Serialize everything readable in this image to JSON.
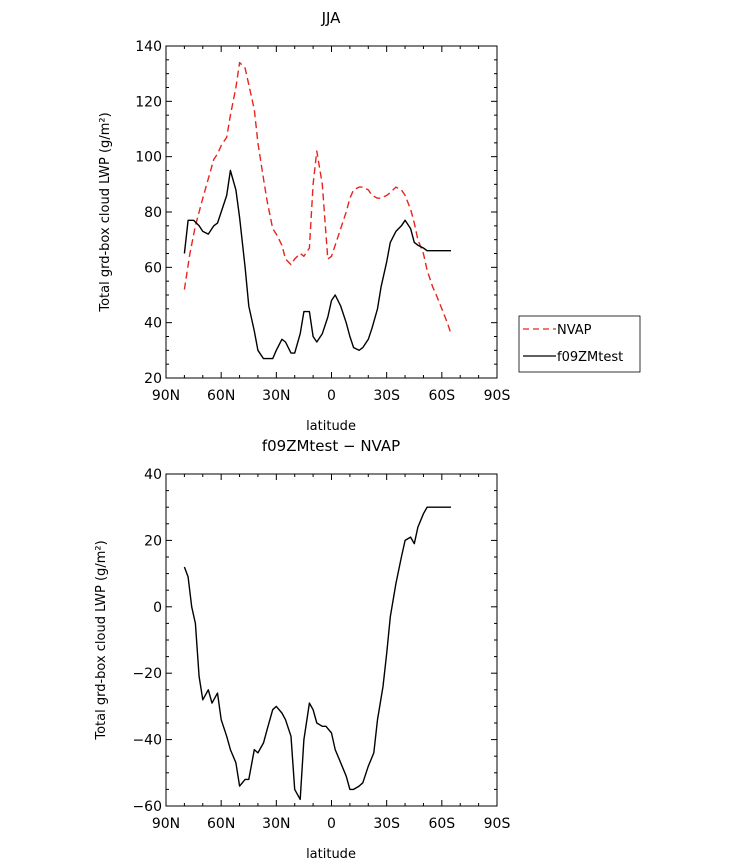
{
  "chart_data": [
    {
      "type": "line",
      "title": "JJA",
      "xlabel": "latitude",
      "ylabel": "Total grd-box cloud LWP (g/m²)",
      "xlim": [
        -90,
        90
      ],
      "ylim": [
        20,
        140
      ],
      "xticks": [
        -90,
        -60,
        -30,
        0,
        30,
        60,
        90
      ],
      "xtick_labels": [
        "90N",
        "60N",
        "30N",
        "0",
        "30S",
        "60S",
        "90S"
      ],
      "yticks": [
        20,
        40,
        60,
        80,
        100,
        120,
        140
      ],
      "ytick_labels": [
        "20",
        "40",
        "60",
        "80",
        "100",
        "120",
        "140"
      ],
      "legend_position": "right-outside",
      "series": [
        {
          "name": "NVAP",
          "color": "#e8241f",
          "dash": "dashed",
          "x": [
            -80,
            -77,
            -74,
            -72,
            -70,
            -67,
            -64,
            -62,
            -60,
            -57,
            -55,
            -52,
            -50,
            -47,
            -45,
            -42,
            -40,
            -37,
            -35,
            -32,
            -30,
            -27,
            -25,
            -22,
            -20,
            -17,
            -15,
            -12,
            -10,
            -8,
            -5,
            -2,
            0,
            2,
            5,
            8,
            10,
            12,
            15,
            17,
            20,
            22,
            25,
            27,
            30,
            32,
            35,
            38,
            40,
            43,
            45,
            47,
            50,
            52,
            55,
            57,
            60,
            63,
            65
          ],
          "y": [
            52,
            65,
            75,
            80,
            85,
            92,
            99,
            101,
            104,
            107,
            115,
            125,
            134,
            132,
            126,
            117,
            105,
            92,
            84,
            74,
            72,
            68,
            63,
            61,
            63,
            65,
            64,
            67,
            90,
            102,
            90,
            63,
            64,
            68,
            74,
            80,
            85,
            88,
            89,
            89,
            88,
            86,
            85,
            85,
            86,
            87,
            89,
            88,
            86,
            81,
            76,
            70,
            65,
            59,
            53,
            50,
            45,
            40,
            36
          ]
        },
        {
          "name": "f09ZMtest",
          "color": "#000000",
          "dash": "solid",
          "x": [
            -80,
            -78,
            -75,
            -72,
            -70,
            -67,
            -64,
            -62,
            -60,
            -57,
            -55,
            -52,
            -50,
            -47,
            -45,
            -42,
            -40,
            -37,
            -35,
            -32,
            -30,
            -27,
            -25,
            -22,
            -20,
            -17,
            -15,
            -12,
            -10,
            -8,
            -5,
            -2,
            0,
            2,
            5,
            8,
            10,
            12,
            15,
            17,
            20,
            22,
            25,
            27,
            30,
            32,
            35,
            38,
            40,
            43,
            45,
            47,
            50,
            52,
            55,
            57,
            60,
            62,
            65
          ],
          "y": [
            65,
            77,
            77,
            75,
            73,
            72,
            75,
            76,
            80,
            86,
            95,
            88,
            78,
            60,
            46,
            37,
            30,
            27,
            27,
            27,
            30,
            34,
            33,
            29,
            29,
            36,
            44,
            44,
            35,
            33,
            36,
            42,
            48,
            50,
            46,
            40,
            35,
            31,
            30,
            31,
            34,
            38,
            45,
            53,
            62,
            69,
            73,
            75,
            77,
            74,
            69,
            68,
            67,
            66,
            66,
            66,
            66,
            66,
            66
          ]
        }
      ]
    },
    {
      "type": "line",
      "title": "f09ZMtest − NVAP",
      "xlabel": "latitude",
      "ylabel": "Total grd-box cloud LWP (g/m²)",
      "xlim": [
        -90,
        90
      ],
      "ylim": [
        -60,
        40
      ],
      "xticks": [
        -90,
        -60,
        -30,
        0,
        30,
        60,
        90
      ],
      "xtick_labels": [
        "90N",
        "60N",
        "30N",
        "0",
        "30S",
        "60S",
        "90S"
      ],
      "yticks": [
        -60,
        -40,
        -20,
        0,
        20,
        40
      ],
      "ytick_labels": [
        "−60",
        "−40",
        "−20",
        "0",
        "20",
        "40"
      ],
      "series": [
        {
          "color": "#000000",
          "dash": "solid",
          "x": [
            -80,
            -78,
            -76,
            -74,
            -72,
            -70,
            -67,
            -65,
            -62,
            -60,
            -57,
            -55,
            -52,
            -50,
            -47,
            -45,
            -42,
            -40,
            -37,
            -35,
            -32,
            -30,
            -27,
            -25,
            -22,
            -20,
            -17,
            -15,
            -12,
            -10,
            -8,
            -5,
            -3,
            0,
            2,
            5,
            8,
            10,
            12,
            15,
            17,
            20,
            23,
            25,
            28,
            30,
            32,
            35,
            38,
            40,
            43,
            45,
            47,
            50,
            52,
            55,
            57,
            60,
            62,
            65
          ],
          "y": [
            12,
            9,
            0,
            -5,
            -21,
            -28,
            -25,
            -29,
            -26,
            -34,
            -39,
            -43,
            -47,
            -54,
            -52,
            -52,
            -43,
            -44,
            -41,
            -37,
            -31,
            -30,
            -32,
            -34,
            -39,
            -55,
            -58,
            -40,
            -29,
            -31,
            -35,
            -36,
            -36,
            -38,
            -43,
            -47,
            -51,
            -55,
            -55,
            -54,
            -53,
            -48,
            -44,
            -34,
            -24,
            -14,
            -3,
            7,
            15,
            20,
            21,
            19,
            24,
            28,
            30,
            30,
            30,
            30,
            30,
            30
          ]
        }
      ]
    }
  ]
}
